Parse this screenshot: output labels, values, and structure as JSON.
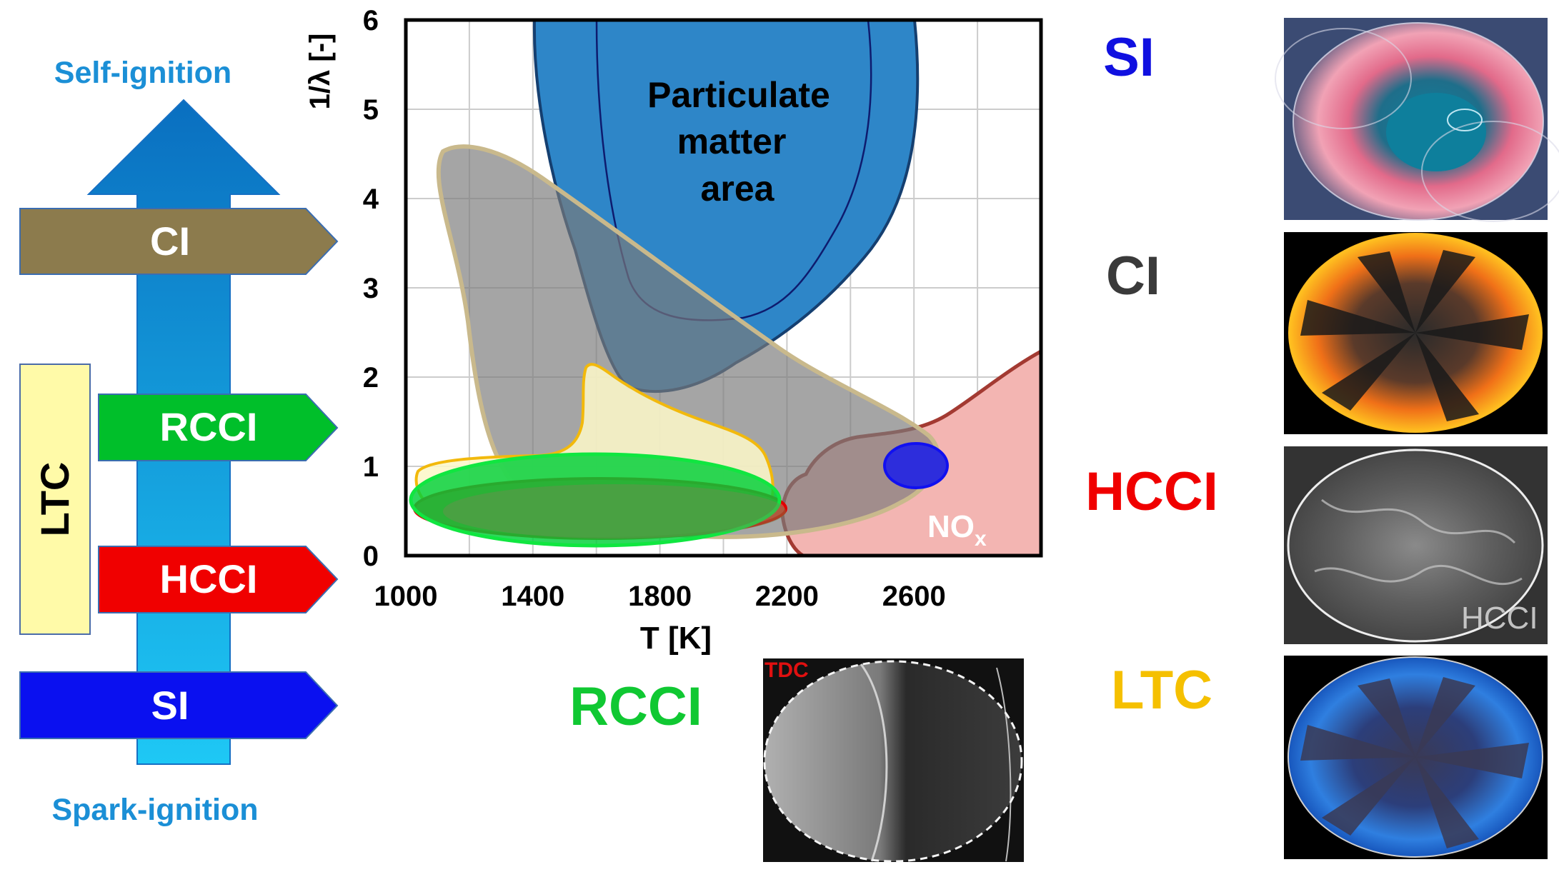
{
  "left_panel": {
    "top_label": "Self-ignition",
    "bottom_label": "Spark-ignition",
    "ltc_label": "LTC",
    "modes": [
      {
        "label": "CI",
        "color": "#8C7B4D"
      },
      {
        "label": "RCCI",
        "color": "#00BF2A"
      },
      {
        "label": "HCCI",
        "color": "#F00000"
      },
      {
        "label": "SI",
        "color": "#0A10F0"
      }
    ]
  },
  "chart_data": {
    "type": "region-map",
    "xlabel": "T [K]",
    "ylabel": "1/λ [-]",
    "xlim": [
      1000,
      3000
    ],
    "ylim": [
      0,
      6
    ],
    "xticks": [
      1000,
      1400,
      1800,
      2200,
      2600
    ],
    "yticks": [
      0,
      1,
      2,
      3,
      4,
      5,
      6
    ],
    "grid": true,
    "regions": [
      {
        "name": "Particulate matter area",
        "label_lines": [
          "Particulate",
          "matter",
          "area"
        ],
        "color": "#2E86C8"
      },
      {
        "name": "NOx",
        "label": "NO",
        "label_sub": "x",
        "color": "#F3B5B2"
      },
      {
        "name": "CI",
        "color": "#707070"
      },
      {
        "name": "LTC",
        "color": "#FCF7C8"
      },
      {
        "name": "HCCI",
        "color": "#F00000"
      },
      {
        "name": "RCCI",
        "color": "#00D038"
      },
      {
        "name": "SI",
        "color": "#2D2DDC"
      }
    ]
  },
  "right_panel": {
    "items": [
      {
        "label": "SI",
        "color": "#1010E0"
      },
      {
        "label": "CI",
        "color": "#3A3A3A"
      },
      {
        "label": "HCCI",
        "color": "#F00000"
      },
      {
        "label": "LTC",
        "color": "#F5C000"
      }
    ],
    "rcci_label": "RCCI",
    "rcci_color": "#10C832",
    "tdc_label": "TDC",
    "hcci_watermark": "HCCI"
  }
}
